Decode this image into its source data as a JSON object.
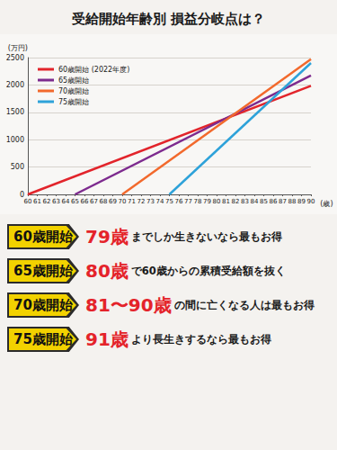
{
  "chart_data": {
    "type": "line",
    "title": "受給開始年齢別 損益分岐点は？",
    "x_label": "(歳)",
    "y_label": "(万円)",
    "xlim": [
      60,
      90
    ],
    "xticks": [
      60,
      61,
      62,
      63,
      64,
      65,
      66,
      67,
      68,
      69,
      70,
      71,
      72,
      73,
      74,
      75,
      76,
      77,
      78,
      79,
      80,
      81,
      82,
      83,
      84,
      85,
      86,
      87,
      88,
      89,
      90
    ],
    "ylim": [
      0,
      2500
    ],
    "yticks": [
      0,
      500,
      1000,
      1500,
      2000,
      2500
    ],
    "grid": true,
    "legend": "upper left",
    "series": [
      {
        "name": "60歳開始 (2022年度)",
        "color": "#e2242b",
        "x": [
          60,
          90
        ],
        "values": [
          0,
          1984
        ]
      },
      {
        "name": "65歳開始",
        "color": "#7d2a8e",
        "x": [
          65,
          90
        ],
        "values": [
          0,
          2175
        ]
      },
      {
        "name": "70歳開始",
        "color": "#f2692c",
        "x": [
          70,
          90
        ],
        "values": [
          0,
          2471
        ]
      },
      {
        "name": "75歳開始",
        "color": "#2ea2d9",
        "x": [
          75,
          90
        ],
        "values": [
          0,
          2401
        ]
      }
    ],
    "annotations": [
      {
        "label": "60歳開始",
        "highlight": "79歳",
        "text": "までしか生きないなら最もお得"
      },
      {
        "label": "65歳開始",
        "highlight": "80歳",
        "text": "で60歳からの累積受給額を抜く"
      },
      {
        "label": "70歳開始",
        "highlight": "81〜90歳",
        "text": "の間に亡くなる人は最もお得"
      },
      {
        "label": "75歳開始",
        "highlight": "91歳",
        "text": "より長生きするなら最もお得"
      }
    ]
  }
}
